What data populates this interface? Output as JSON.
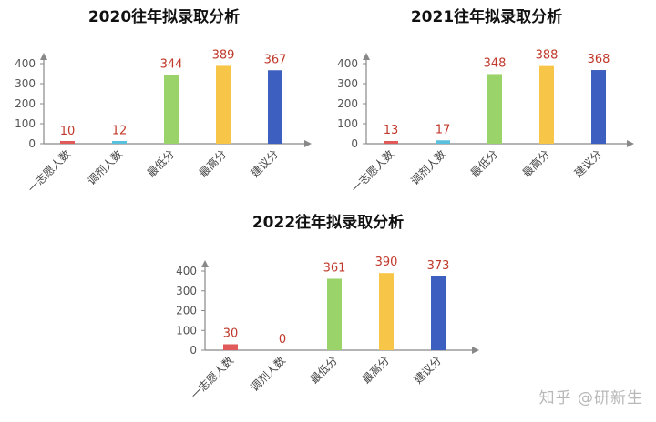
{
  "chart_data": [
    {
      "type": "bar",
      "title": "2020往年拟录取分析",
      "categories": [
        "一志愿人数",
        "调剂人数",
        "最低分",
        "最高分",
        "建议分"
      ],
      "values": [
        10,
        12,
        344,
        389,
        367
      ],
      "yticks": [
        0,
        100,
        200,
        300,
        400
      ],
      "ylim": [
        0,
        400
      ],
      "grid": false,
      "colors": [
        "#e05a5a",
        "#5bc0de",
        "#9ad36a",
        "#f7c548",
        "#3d5fbf"
      ]
    },
    {
      "type": "bar",
      "title": "2021往年拟录取分析",
      "categories": [
        "一志愿人数",
        "调剂人数",
        "最低分",
        "最高分",
        "建议分"
      ],
      "values": [
        13,
        17,
        348,
        388,
        368
      ],
      "yticks": [
        0,
        100,
        200,
        300,
        400
      ],
      "ylim": [
        0,
        400
      ],
      "grid": false,
      "colors": [
        "#e05a5a",
        "#5bc0de",
        "#9ad36a",
        "#f7c548",
        "#3d5fbf"
      ]
    },
    {
      "type": "bar",
      "title": "2022往年拟录取分析",
      "categories": [
        "一志愿人数",
        "调剂人数",
        "最低分",
        "最高分",
        "建议分"
      ],
      "values": [
        30,
        0,
        361,
        390,
        373
      ],
      "yticks": [
        0,
        100,
        200,
        300,
        400
      ],
      "ylim": [
        0,
        400
      ],
      "grid": false,
      "colors": [
        "#e05a5a",
        "#5bc0de",
        "#9ad36a",
        "#f7c548",
        "#3d5fbf"
      ]
    }
  ],
  "watermark": "知乎 @研新生",
  "colors": {
    "axis": "#888888",
    "data_label": "#c0392b"
  }
}
